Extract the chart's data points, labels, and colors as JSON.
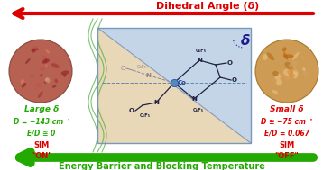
{
  "title_top": "Dihedral Angle (δ)",
  "title_bottom": "Energy Barrier and Blocking Temperature",
  "left_label1": "Large δ",
  "left_label2": "D = −143 cm⁻¹",
  "left_label3": "E/D ≅ 0",
  "left_label4": "SIM",
  "left_label5": "\"ON\"",
  "right_label1": "Small δ",
  "right_label2": "D ≅ −75 cm⁻¹",
  "right_label3": "E/D = 0.067",
  "right_label4": "SIM",
  "right_label5": "\"OFF\"",
  "delta_label": "δ",
  "arrow_color_red": "#DD0000",
  "arrow_color_green": "#22AA00",
  "text_color_green": "#22AA00",
  "text_color_red": "#DD0000",
  "text_color_darkblue": "#1A1A8C",
  "bg_color": "#FFFFFF",
  "box_blue_fill": "#C5D5E8",
  "box_tan_fill": "#E8D8B8",
  "title_top_color": "#DD0000",
  "title_bottom_color": "#22AA00",
  "molecule_dark": "#222244",
  "co_color": "#224488"
}
